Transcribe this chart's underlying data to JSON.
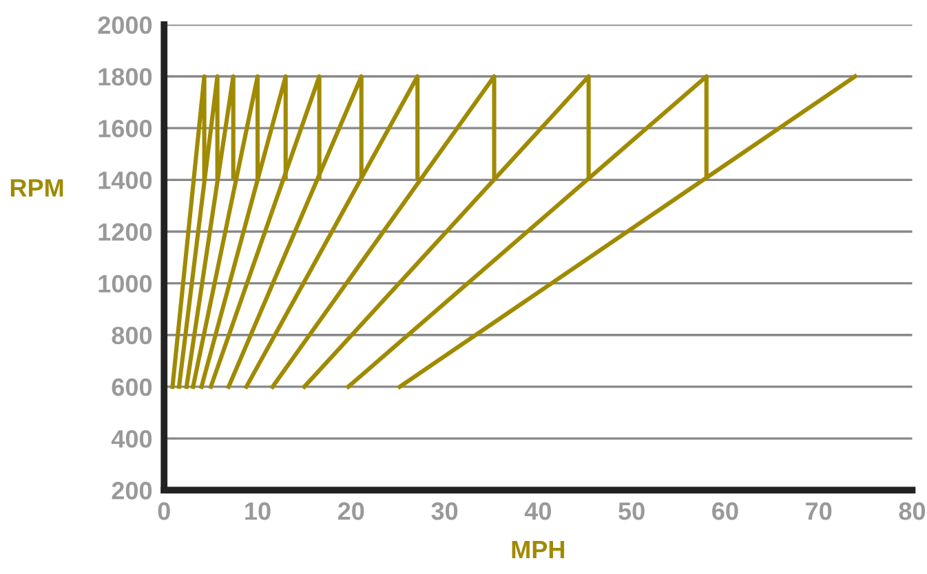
{
  "chart_data": {
    "type": "line",
    "xlabel": "MPH",
    "ylabel": "RPM",
    "series": [
      {
        "color": "#a08a00",
        "x": [
          0.9,
          4.3,
          4.3
        ],
        "values": [
          600,
          1800,
          1410
        ]
      },
      {
        "color": "#a08a00",
        "x": [
          1.6,
          5.7,
          5.7
        ],
        "values": [
          600,
          1800,
          1410
        ]
      },
      {
        "color": "#a08a00",
        "x": [
          2.4,
          7.4,
          7.4
        ],
        "values": [
          600,
          1800,
          1410
        ]
      },
      {
        "color": "#a08a00",
        "x": [
          3.1,
          10.0,
          10.0
        ],
        "values": [
          600,
          1800,
          1410
        ]
      },
      {
        "color": "#a08a00",
        "x": [
          4.0,
          13.0,
          13.0
        ],
        "values": [
          600,
          1800,
          1410
        ]
      },
      {
        "color": "#a08a00",
        "x": [
          5.0,
          16.6,
          16.6
        ],
        "values": [
          600,
          1800,
          1410
        ]
      },
      {
        "color": "#a08a00",
        "x": [
          6.9,
          21.1,
          21.1
        ],
        "values": [
          600,
          1800,
          1410
        ]
      },
      {
        "color": "#a08a00",
        "x": [
          8.8,
          27.1,
          27.1
        ],
        "values": [
          600,
          1800,
          1410
        ]
      },
      {
        "color": "#a08a00",
        "x": [
          11.6,
          35.3,
          35.3
        ],
        "values": [
          600,
          1800,
          1410
        ]
      },
      {
        "color": "#a08a00",
        "x": [
          15.0,
          45.4,
          45.4
        ],
        "values": [
          600,
          1800,
          1410
        ]
      },
      {
        "color": "#a08a00",
        "x": [
          19.7,
          58.0,
          58.0
        ],
        "values": [
          600,
          1800,
          1410
        ]
      },
      {
        "color": "#a08a00",
        "x": [
          25.2,
          73.9
        ],
        "values": [
          600,
          1800
        ]
      }
    ],
    "xlim": [
      0,
      80
    ],
    "xticks": [
      0,
      10,
      20,
      30,
      40,
      50,
      60,
      70,
      80
    ],
    "ylim": [
      200,
      2000
    ],
    "yticks": [
      200,
      400,
      600,
      800,
      1000,
      1200,
      1400,
      1600,
      1800,
      2000
    ],
    "grid": "y",
    "marker": "none",
    "line_style": "solid",
    "legend": false
  }
}
